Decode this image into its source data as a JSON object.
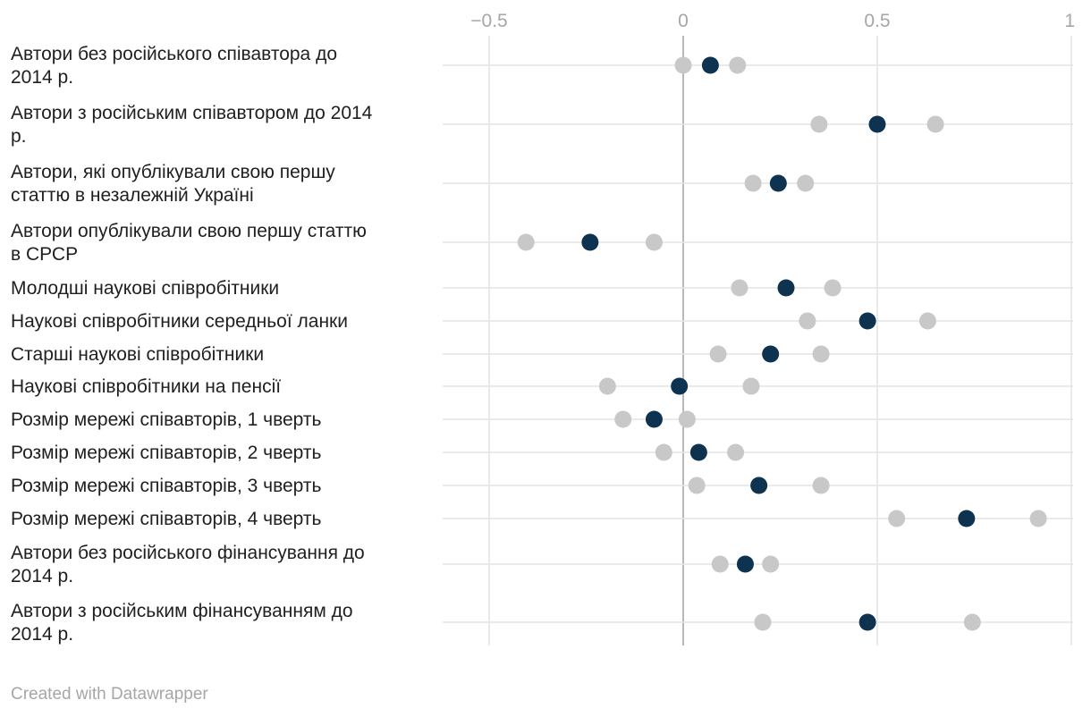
{
  "chart_data": {
    "type": "range-dot",
    "title": "",
    "xlabel": "",
    "ylabel": "",
    "xlim": [
      -0.5,
      1
    ],
    "x_ticks": [
      {
        "value": -0.5,
        "label": "−0.5"
      },
      {
        "value": 0,
        "label": "0"
      },
      {
        "value": 0.5,
        "label": "0.5"
      },
      {
        "value": 1,
        "label": "1"
      }
    ],
    "grid": true,
    "legend": "none",
    "colors": {
      "estimate": "#0e3350",
      "bound": "#c8c8c8",
      "grid": "#e4e4e4",
      "zero_line": "#b8b8b8"
    },
    "rows": [
      {
        "label": "Автори без російського співавтора до 2014 р.",
        "label_lines": [
          "Автори без російського співавтора до",
          "2014 р."
        ],
        "low": 0.0,
        "estimate": 0.07,
        "high": 0.14
      },
      {
        "label": "Автори з російським співавтором до 2014 р.",
        "label_lines": [
          "Автори з російським співавтором до 2014",
          "р."
        ],
        "low": 0.35,
        "estimate": 0.5,
        "high": 0.65
      },
      {
        "label": "Автори, які опублікували свою першу статтю в незалежній Україні",
        "label_lines": [
          "Автори, які опублікували свою першу",
          "статтю в незалежній Україні"
        ],
        "low": 0.18,
        "estimate": 0.245,
        "high": 0.315
      },
      {
        "label": "Автори опублікували свою першу статтю в СРСР",
        "label_lines": [
          "Автори опублікували свою першу статтю",
          "в СРСР"
        ],
        "low": -0.405,
        "estimate": -0.24,
        "high": -0.075
      },
      {
        "label": "Молодші наукові співробітники",
        "label_lines": [
          "Молодші наукові співробітники"
        ],
        "low": 0.145,
        "estimate": 0.265,
        "high": 0.385
      },
      {
        "label": "Наукові співробітники середньої ланки",
        "label_lines": [
          "Наукові співробітники середньої ланки"
        ],
        "low": 0.32,
        "estimate": 0.475,
        "high": 0.63
      },
      {
        "label": "Старші наукові співробітники",
        "label_lines": [
          "Старші наукові співробітники"
        ],
        "low": 0.09,
        "estimate": 0.225,
        "high": 0.355
      },
      {
        "label": "Наукові співробітники на пенсії",
        "label_lines": [
          "Наукові співробітники на пенсії"
        ],
        "low": -0.195,
        "estimate": -0.01,
        "high": 0.175
      },
      {
        "label": "Розмір мережі співавторів, 1 чверть",
        "label_lines": [
          "Розмір мережі співавторів, 1 чверть"
        ],
        "low": -0.155,
        "estimate": -0.075,
        "high": 0.01
      },
      {
        "label": "Розмір мережі співавторів, 2 чверть",
        "label_lines": [
          "Розмір мережі співавторів, 2 чверть"
        ],
        "low": -0.05,
        "estimate": 0.04,
        "high": 0.135
      },
      {
        "label": "Розмір мережі співавторів, 3 чверть",
        "label_lines": [
          "Розмір мережі співавторів, 3 чверть"
        ],
        "low": 0.035,
        "estimate": 0.195,
        "high": 0.355
      },
      {
        "label": "Розмір мережі співавторів, 4 чверть",
        "label_lines": [
          "Розмір мережі співавторів, 4 чверть"
        ],
        "low": 0.55,
        "estimate": 0.73,
        "high": 0.915
      },
      {
        "label": "Автори без російського фінансування до 2014 р.",
        "label_lines": [
          "Автори без російського фінансування до",
          "2014 р."
        ],
        "low": 0.095,
        "estimate": 0.16,
        "high": 0.225
      },
      {
        "label": "Автори з російським фінансуванням до 2014 р.",
        "label_lines": [
          "Автори з російським фінансуванням до",
          "2014 р."
        ],
        "low": 0.205,
        "estimate": 0.475,
        "high": 0.745
      }
    ]
  },
  "footer": {
    "credit": "Created with Datawrapper"
  }
}
